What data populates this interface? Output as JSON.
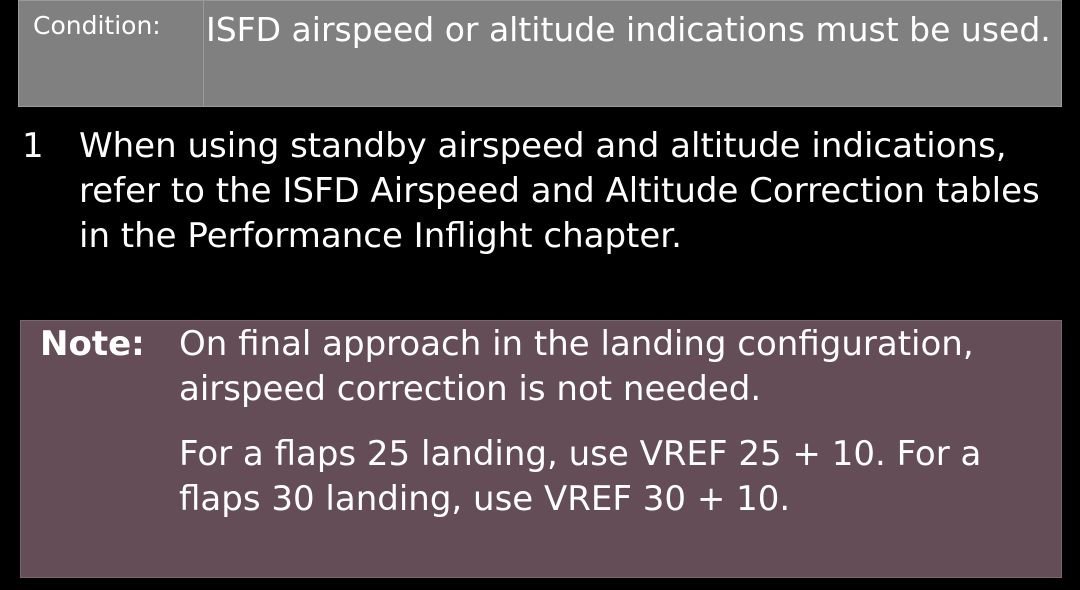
{
  "condition": {
    "label": "Condition:",
    "text": "ISFD airspeed or altitude indications must be used."
  },
  "steps": [
    {
      "number": "1",
      "text": "When using standby airspeed and altitude indications, refer to the ISFD Airspeed and Altitude Correction tables in the Performance Inflight chapter."
    }
  ],
  "note": {
    "label": "Note:",
    "paragraphs": [
      "On final approach in the landing configuration, airspeed correction is not needed.",
      "For a flaps 25 landing, use VREF 25 + 10. For a flaps 30 landing, use VREF 30 + 10."
    ]
  },
  "colors": {
    "background": "#000000",
    "condition_box": "#808080",
    "note_box": "#644d57",
    "text": "#ffffff"
  }
}
